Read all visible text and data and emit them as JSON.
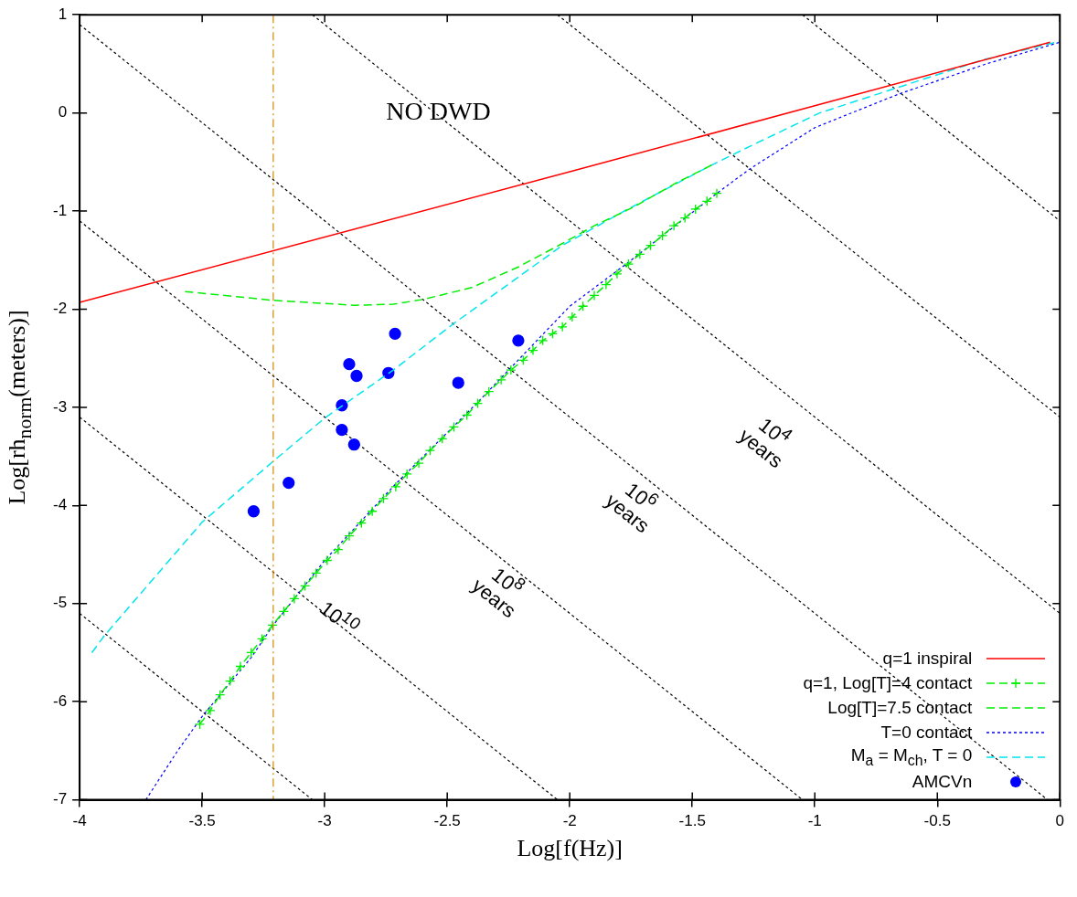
{
  "chart_data": {
    "type": "line",
    "xlabel": "Log[f(Hz)]",
    "ylabel": "Log[rh$_{norm}$(meters)]",
    "xlim": [
      -4,
      0
    ],
    "ylim": [
      -7,
      1
    ],
    "xticks": [
      -4,
      -3.5,
      -3,
      -2.5,
      -2,
      -1.5,
      -1,
      -0.5,
      0
    ],
    "yticks": [
      -7,
      -6,
      -5,
      -4,
      -3,
      -2,
      -1,
      0,
      1
    ],
    "grid": false,
    "legend": "bottom right",
    "annotations": [
      "NO DWD",
      "10$^{4}$ years",
      "10$^{6}$ years",
      "10$^{8}$ years",
      "10$^{10}$"
    ],
    "ref_lines": [
      {
        "axis": "x",
        "value": -3.21,
        "color": "#d08a00",
        "line_style": "dashed"
      }
    ],
    "series": [
      {
        "name": "q=1 inspiral",
        "color": "#ff0000",
        "type": "line",
        "line_style": "solid",
        "marker": "none",
        "x": [
          -4,
          -2,
          -0.04
        ],
        "values": [
          -1.93,
          -0.6,
          0.72
        ]
      },
      {
        "name": "q=1, Log[T]=4 contact",
        "color": "#00ee00",
        "type": "line",
        "line_style": "dashed",
        "marker": "cross",
        "x": [
          -3.51,
          -3.467,
          -3.427,
          -3.386,
          -3.344,
          -3.3,
          -3.256,
          -3.213,
          -3.167,
          -3.124,
          -3.08,
          -3.035,
          -2.99,
          -2.945,
          -2.9,
          -2.85,
          -2.806,
          -2.76,
          -2.71,
          -2.664,
          -2.616,
          -2.57,
          -2.52,
          -2.473,
          -2.42,
          -2.376,
          -2.33,
          -2.28,
          -2.24,
          -2.19,
          -2.15,
          -2.11,
          -2.07,
          -2.03,
          -1.99,
          -1.946,
          -1.9,
          -1.852,
          -1.807,
          -1.76,
          -1.714,
          -1.67,
          -1.622,
          -1.575,
          -1.53,
          -1.487,
          -1.44,
          -1.4
        ],
        "values": [
          -6.23,
          -6.09,
          -5.93,
          -5.79,
          -5.64,
          -5.5,
          -5.36,
          -5.22,
          -5.08,
          -4.95,
          -4.82,
          -4.69,
          -4.56,
          -4.45,
          -4.31,
          -4.18,
          -4.06,
          -3.93,
          -3.81,
          -3.68,
          -3.57,
          -3.44,
          -3.32,
          -3.2,
          -3.08,
          -2.96,
          -2.84,
          -2.72,
          -2.62,
          -2.52,
          -2.42,
          -2.32,
          -2.25,
          -2.18,
          -2.08,
          -1.97,
          -1.86,
          -1.75,
          -1.64,
          -1.54,
          -1.44,
          -1.35,
          -1.25,
          -1.15,
          -1.07,
          -0.98,
          -0.9,
          -0.82
        ]
      },
      {
        "name": "Log[T]=7.5 contact",
        "color": "#00ee00",
        "type": "line",
        "line_style": "dashed",
        "marker": "none",
        "x": [
          -3.57,
          -3.21,
          -2.88,
          -2.72,
          -2.597,
          -2.4,
          -2.21,
          -2.03,
          -1.9,
          -1.74,
          -1.57,
          -1.42
        ],
        "values": [
          -1.82,
          -1.91,
          -1.96,
          -1.95,
          -1.9,
          -1.78,
          -1.57,
          -1.33,
          -1.15,
          -0.96,
          -0.72,
          -0.53
        ]
      },
      {
        "name": "T=0 contact",
        "color": "#0000ff",
        "type": "line",
        "line_style": "dotted",
        "marker": "none",
        "x": [
          -3.73,
          -3.6,
          -3.5,
          -3.3,
          -3.21,
          -3,
          -2.71,
          -2.376,
          -2,
          -1.77,
          -1.4,
          -1.265,
          -1,
          -0.66,
          -0.3,
          0
        ],
        "values": [
          -7,
          -6.5,
          -6.15,
          -5.55,
          -5.22,
          -4.56,
          -3.78,
          -2.95,
          -1.97,
          -1.54,
          -0.82,
          -0.57,
          -0.15,
          0.19,
          0.5,
          0.72
        ]
      },
      {
        "name": "M$_{a}$ = M$_{ch}$, T = 0",
        "color": "#00e5ee",
        "type": "line",
        "line_style": "dashed",
        "marker": "none",
        "x": [
          -3.95,
          -3.9,
          -3.5,
          -3.21,
          -3,
          -2.72,
          -2.47,
          -2.03,
          -1.77,
          -1.42,
          -1.24,
          -0.98,
          -0.66,
          -0.315,
          0
        ],
        "values": [
          -5.5,
          -5.33,
          -4.17,
          -3.55,
          -3.11,
          -2.62,
          -2.14,
          -1.35,
          -0.99,
          -0.53,
          -0.31,
          0,
          0.26,
          0.54,
          0.73
        ]
      },
      {
        "name": "AMCVn",
        "color": "#0000ff",
        "type": "scatter",
        "marker": "circle",
        "x": [
          -2.713,
          -2.9,
          -2.87,
          -2.74,
          -2.21,
          -2.455,
          -2.93,
          -2.93,
          -2.88,
          -3.147,
          -3.29
        ],
        "values": [
          -2.25,
          -2.56,
          -2.68,
          -2.65,
          -2.32,
          -2.75,
          -2.98,
          -3.23,
          -3.38,
          -3.77,
          -4.06
        ]
      },
      {
        "color": "#000000",
        "type": "line",
        "line_style": "dotted",
        "marker": "none",
        "x": [
          -1.05,
          0
        ],
        "values": [
          1,
          -1.1
        ]
      },
      {
        "color": "#000000",
        "type": "line",
        "line_style": "dotted",
        "marker": "none",
        "x": [
          -2.05,
          0
        ],
        "values": [
          1,
          -3.1
        ]
      },
      {
        "color": "#000000",
        "type": "line",
        "line_style": "dotted",
        "marker": "none",
        "x": [
          -3.05,
          0
        ],
        "values": [
          1,
          -5.1
        ]
      },
      {
        "color": "#000000",
        "type": "line",
        "line_style": "dotted",
        "marker": "none",
        "x": [
          -4,
          -0.05
        ],
        "values": [
          0.9,
          -7
        ]
      },
      {
        "color": "#000000",
        "type": "line",
        "line_style": "dotted",
        "marker": "none",
        "x": [
          -4,
          -1.05
        ],
        "values": [
          -1.1,
          -7
        ]
      },
      {
        "color": "#000000",
        "type": "line",
        "line_style": "dotted",
        "marker": "none",
        "x": [
          -4,
          -2.05
        ],
        "values": [
          -3.1,
          -7
        ]
      },
      {
        "color": "#000000",
        "type": "line",
        "line_style": "dotted",
        "marker": "none",
        "x": [
          -4,
          -3.05
        ],
        "values": [
          -5.1,
          -7
        ]
      }
    ]
  }
}
